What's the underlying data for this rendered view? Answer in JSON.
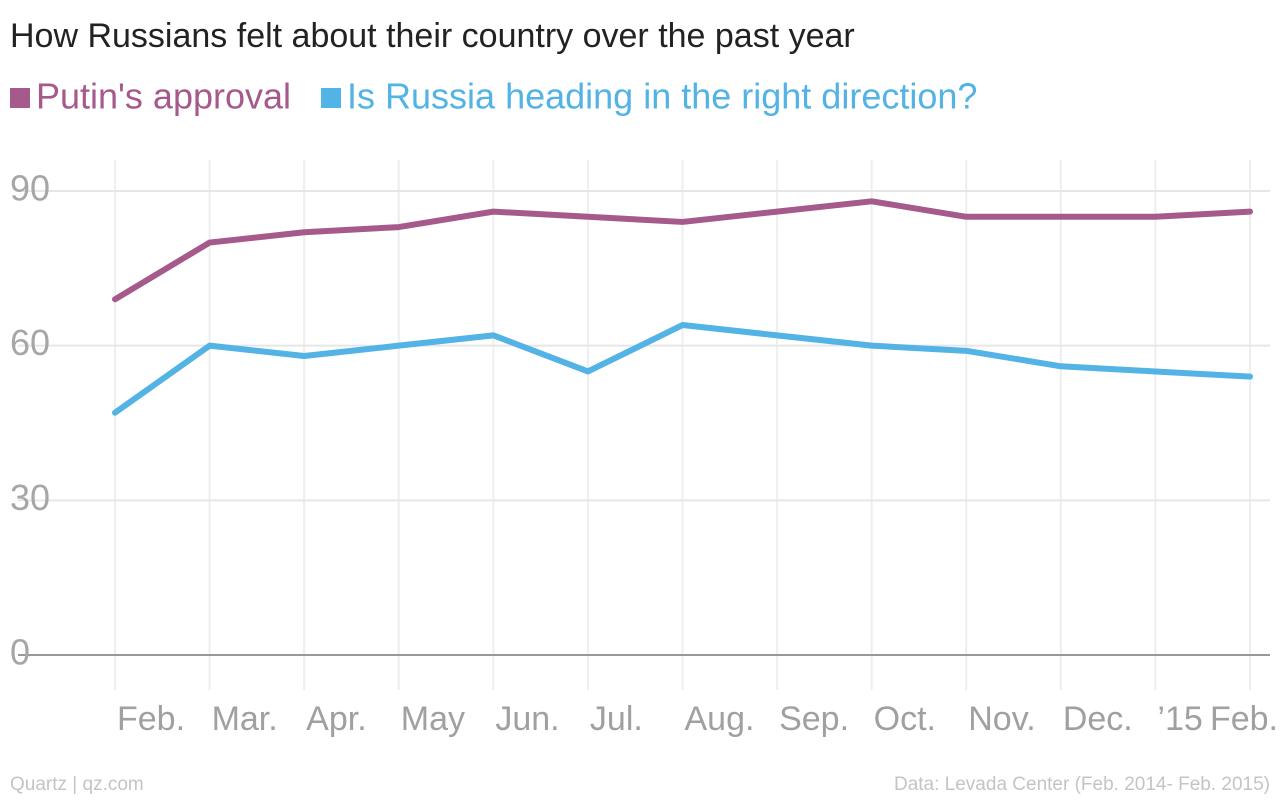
{
  "chart_data": {
    "type": "line",
    "title": "How Russians felt about their country over the past year",
    "categories": [
      "Feb.",
      "Mar.",
      "Apr.",
      "May",
      "Jun.",
      "Jul.",
      "Aug.",
      "Sep.",
      "Oct.",
      "Nov.",
      "Dec.",
      "’15",
      "Feb."
    ],
    "series": [
      {
        "name": "Putin's approval",
        "color": "#a65a8c",
        "values": [
          69,
          80,
          82,
          83,
          86,
          85,
          84,
          86,
          88,
          85,
          85,
          85,
          86
        ]
      },
      {
        "name": "Is Russia heading in the right direction?",
        "color": "#52b3e4",
        "values": [
          47,
          60,
          58,
          60,
          62,
          55,
          64,
          62,
          60,
          59,
          56,
          55,
          54
        ]
      }
    ],
    "ylim": [
      0,
      90
    ],
    "yticks": [
      0,
      30,
      60,
      90
    ],
    "grid": true,
    "source_left": "Quartz | qz.com",
    "source_right": "Data: Levada Center (Feb. 2014- Feb. 2015)"
  }
}
